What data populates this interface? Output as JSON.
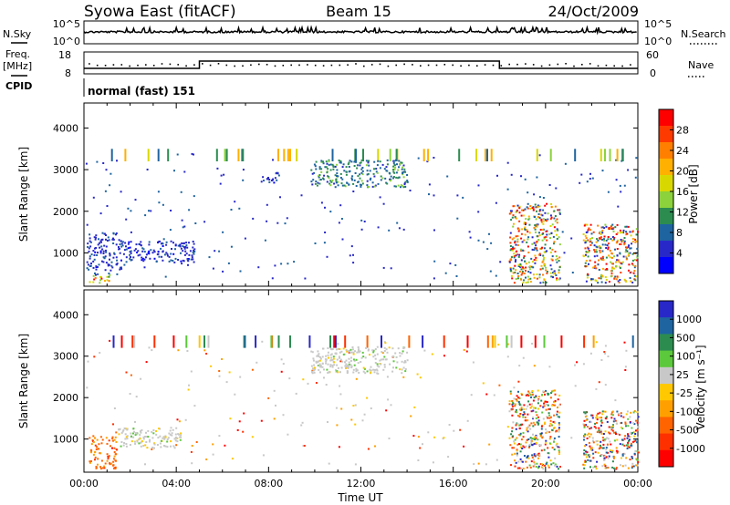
{
  "header": {
    "station": "Syowa East (fitACF)",
    "beam": "Beam 15",
    "date": "24/Oct/2009"
  },
  "nsky_panel": {
    "left_label": "N.Sky",
    "left_ticks": [
      "10^5",
      "10^0"
    ],
    "right_label": "N.Search",
    "right_ticks": [
      "10^5",
      "10^0"
    ]
  },
  "freq_panel": {
    "left_label_line1": "Freq.",
    "left_label_line2": "[MHz]",
    "left_ticks": [
      "18",
      "8"
    ],
    "right_label": "Nave",
    "right_ticks": [
      "60",
      "0"
    ]
  },
  "cpid": {
    "label": "CPID",
    "text": "normal (fast) 151"
  },
  "chart_data": [
    {
      "type": "heatmap",
      "name": "power",
      "ylabel": "Slant Range [km]",
      "yticks": [
        "1000",
        "2000",
        "3000",
        "4000"
      ],
      "ylim": [
        200,
        4600
      ],
      "xlabel": "",
      "xticks": [],
      "xlim": [
        0,
        24
      ],
      "colorbar_label": "Power [dB]",
      "colorbar_ticks": [
        "28",
        "24",
        "20",
        "16",
        "12",
        "8",
        "4"
      ],
      "colorbar_colors": [
        "#ff0000",
        "#ff3a00",
        "#ff8000",
        "#ffb000",
        "#d8d800",
        "#8cd23c",
        "#2c8c50",
        "#1e64a0",
        "#2828c8",
        "#0000ff"
      ],
      "regions": [
        {
          "t0": 0.2,
          "t1": 1.1,
          "r0": 300,
          "r1": 550,
          "level": "mixed-high"
        },
        {
          "t0": 0.1,
          "t1": 1.6,
          "r0": 600,
          "r1": 1500,
          "level": "low"
        },
        {
          "t0": 1.6,
          "t1": 4.8,
          "r0": 800,
          "r1": 1300,
          "level": "low"
        },
        {
          "t0": 7.6,
          "t1": 8.4,
          "r0": 2700,
          "r1": 2950,
          "level": "low"
        },
        {
          "t0": 9.8,
          "t1": 14.0,
          "r0": 2600,
          "r1": 3250,
          "level": "mid"
        },
        {
          "t0": 18.4,
          "t1": 20.6,
          "r0": 300,
          "r1": 2200,
          "level": "mixed-high"
        },
        {
          "t0": 21.6,
          "t1": 24.0,
          "r0": 300,
          "r1": 1700,
          "level": "mixed-high"
        }
      ]
    },
    {
      "type": "heatmap",
      "name": "velocity",
      "ylabel": "Slant Range [km]",
      "yticks": [
        "1000",
        "2000",
        "3000",
        "4000"
      ],
      "ylim": [
        200,
        4600
      ],
      "xlabel": "Time UT",
      "xticks": [
        "00:00",
        "04:00",
        "08:00",
        "12:00",
        "16:00",
        "20:00",
        "00:00"
      ],
      "xlim": [
        0,
        24
      ],
      "colorbar_label": "Velocity [m s⁻¹]",
      "colorbar_ticks": [
        "1000",
        "500",
        "100",
        "25",
        "-25",
        "-100",
        "-500",
        "-1000"
      ],
      "colorbar_colors": [
        "#2828c8",
        "#1e64a0",
        "#2c8c50",
        "#5cc83c",
        "#c8c8c8",
        "#ffc800",
        "#ffa000",
        "#ff6400",
        "#ff3000",
        "#ff0000"
      ],
      "regions": [
        {
          "t0": 0.2,
          "t1": 1.4,
          "r0": 300,
          "r1": 1100,
          "level": "negative"
        },
        {
          "t0": 1.4,
          "t1": 4.2,
          "r0": 800,
          "r1": 1300,
          "level": "near-zero"
        },
        {
          "t0": 9.8,
          "t1": 14.0,
          "r0": 2600,
          "r1": 3250,
          "level": "near-zero"
        },
        {
          "t0": 18.4,
          "t1": 20.6,
          "r0": 300,
          "r1": 2200,
          "level": "mixed"
        },
        {
          "t0": 21.6,
          "t1": 24.0,
          "r0": 300,
          "r1": 1700,
          "level": "mixed"
        }
      ]
    }
  ]
}
